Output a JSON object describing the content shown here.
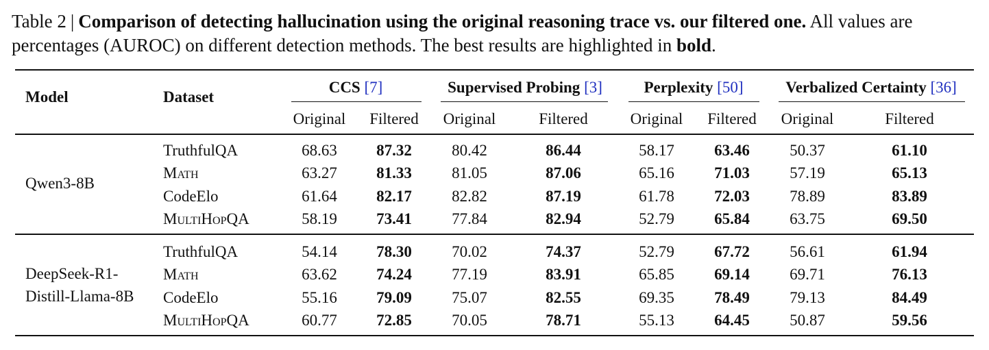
{
  "caption": {
    "label": "Table 2",
    "separator": "|",
    "title": "Comparison of detecting hallucination using the original reasoning trace vs. our filtered one.",
    "text_a": "All values are percentages (AUROC) on different detection methods. The best results are highlighted in",
    "emph": "bold",
    "end": "."
  },
  "header": {
    "model": "Model",
    "dataset": "Dataset",
    "methods": [
      {
        "name": "CCS",
        "cite": "[7]"
      },
      {
        "name": "Supervised Probing",
        "cite": "[3]"
      },
      {
        "name": "Perplexity",
        "cite": "[50]"
      },
      {
        "name": "Verbalized Certainty",
        "cite": "[36]"
      }
    ],
    "sub": {
      "original": "Original",
      "filtered": "Filtered"
    }
  },
  "groups": [
    {
      "model_lines": [
        "Qwen3-8B"
      ],
      "rows": [
        {
          "dataset": "TruthfulQA",
          "values": [
            "68.63",
            "87.32",
            "80.42",
            "86.44",
            "58.17",
            "63.46",
            "50.37",
            "61.10"
          ]
        },
        {
          "dataset": "Math",
          "values": [
            "63.27",
            "81.33",
            "81.05",
            "87.06",
            "65.16",
            "71.03",
            "57.19",
            "65.13"
          ]
        },
        {
          "dataset": "CodeElo",
          "values": [
            "61.64",
            "82.17",
            "82.82",
            "87.19",
            "61.78",
            "72.03",
            "78.89",
            "83.89"
          ]
        },
        {
          "dataset": "MultiHopQA",
          "values": [
            "58.19",
            "73.41",
            "77.84",
            "82.94",
            "52.79",
            "65.84",
            "63.75",
            "69.50"
          ]
        }
      ]
    },
    {
      "model_lines": [
        "DeepSeek-R1-",
        "Distill-Llama-8B"
      ],
      "rows": [
        {
          "dataset": "TruthfulQA",
          "values": [
            "54.14",
            "78.30",
            "70.02",
            "74.37",
            "52.79",
            "67.72",
            "56.61",
            "61.94"
          ]
        },
        {
          "dataset": "Math",
          "values": [
            "63.62",
            "74.24",
            "77.19",
            "83.91",
            "65.85",
            "69.14",
            "69.71",
            "76.13"
          ]
        },
        {
          "dataset": "CodeElo",
          "values": [
            "55.16",
            "79.09",
            "75.07",
            "82.55",
            "69.35",
            "78.49",
            "79.13",
            "84.49"
          ]
        },
        {
          "dataset": "MultiHopQA",
          "values": [
            "60.77",
            "72.85",
            "70.05",
            "78.71",
            "55.13",
            "64.45",
            "50.87",
            "59.56"
          ]
        }
      ]
    }
  ]
}
